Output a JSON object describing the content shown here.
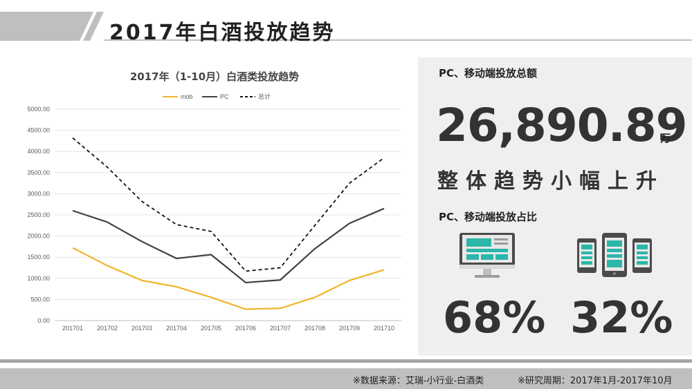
{
  "header": {
    "title": "2017年白酒投放趋势"
  },
  "chart_data": {
    "type": "line",
    "title": "2017年（1-10月）白酒类投放趋势",
    "categories": [
      "201701",
      "201702",
      "201703",
      "201704",
      "201705",
      "201706",
      "201707",
      "201708",
      "201709",
      "201710"
    ],
    "series": [
      {
        "name": "mob",
        "color": "#f0b528",
        "dash": false,
        "values": [
          1720,
          1300,
          950,
          800,
          550,
          270,
          290,
          550,
          950,
          1200
        ]
      },
      {
        "name": "PC",
        "color": "#404040",
        "dash": false,
        "values": [
          2600,
          2330,
          1870,
          1470,
          1560,
          900,
          960,
          1700,
          2300,
          2650
        ]
      },
      {
        "name": "总计",
        "color": "#111111",
        "dash": true,
        "values": [
          4320,
          3630,
          2820,
          2270,
          2110,
          1170,
          1250,
          2250,
          3250,
          3850
        ]
      }
    ],
    "ylim": [
      0,
      5000
    ],
    "yticks": [
      "0.00",
      "500.00",
      "1000.00",
      "1500.00",
      "2000.00",
      "2500.00",
      "3000.00",
      "3500.00",
      "4000.00",
      "4500.00",
      "5000.00"
    ],
    "grid": true,
    "legend": "top-center"
  },
  "panel": {
    "total_heading": "PC、移动端投放总额",
    "total_value": "26,890.89",
    "total_unit": "万",
    "trend": "整体趋势小幅上升",
    "share_heading": "PC、移动端投放占比",
    "pc_share": "68%",
    "mobile_share": "32%",
    "pc_icon": "desktop-monitor-icon",
    "mobile_icon": "mobile-phones-icon"
  },
  "footer": {
    "source": "※数据来源：艾瑞-小行业-白酒类",
    "period": "※研究周期：2017年1月-2017年10月"
  }
}
